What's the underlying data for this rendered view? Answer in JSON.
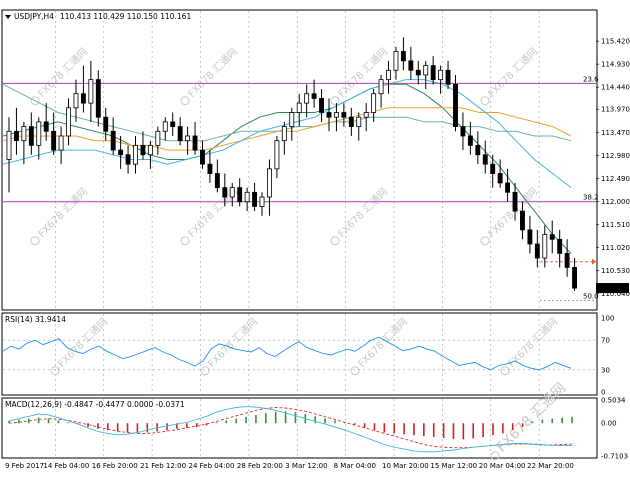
{
  "colors": {
    "price_bar": "#000000",
    "grid": "#a0a0a0",
    "fib_line": "#b040c0",
    "ma_green": "#2e8b57",
    "ma_orange": "#f0a030",
    "ma_teal": "#70b0b0",
    "ma_cyan": "#40b8e0",
    "rsi": "#1e90ff",
    "macd_signal": "#e03030",
    "macd_hist_pos": "#2e9a2e",
    "macd_hist_neg": "#d02020",
    "price_tag_bg": "#000000",
    "dashed_orange": "#e06020",
    "watermark": "#c8c8c8"
  },
  "header": {
    "symbol": "USDJPY,H4",
    "ohlc": "110.413 110.429 110.150 110.161",
    "triangle_icon": "down-triangle-icon"
  },
  "watermark": {
    "text": "FX678 汇通网",
    "logo_icon": "fx678-logo-icon"
  },
  "chart_data": [
    {
      "type": "candlestick",
      "title": "USDJPY,H4",
      "ylim": [
        109.8,
        115.7
      ],
      "y_ticks": [
        "115.420",
        "114.930",
        "114.440",
        "113.970",
        "113.470",
        "112.980",
        "112.490",
        "112.000",
        "111.510",
        "111.020",
        "110.530",
        "110.040"
      ],
      "current_price": "110.161",
      "x_ticks": [
        "9 Feb 2017",
        "14 Feb 04:00",
        "16 Feb 20:00",
        "21 Feb 12:00",
        "24 Feb 04:00",
        "28 Feb 20:00",
        "3 Mar 12:00",
        "8 Mar 04:00",
        "10 Mar 20:00",
        "15 Mar 12:00",
        "20 Mar 04:00",
        "22 Mar 20:00"
      ],
      "fib_levels": [
        {
          "label": "23.6",
          "value": 114.52
        },
        {
          "label": "38.2",
          "value": 112.0
        },
        {
          "label": "50.0",
          "value": 109.9
        }
      ],
      "candles": [
        [
          112.9,
          113.8,
          112.2,
          113.5
        ],
        [
          113.5,
          114.0,
          113.0,
          113.3
        ],
        [
          113.3,
          113.7,
          112.8,
          113.6
        ],
        [
          113.6,
          113.9,
          113.0,
          113.2
        ],
        [
          113.2,
          113.8,
          112.9,
          113.7
        ],
        [
          113.7,
          114.1,
          113.3,
          113.5
        ],
        [
          113.5,
          113.9,
          113.0,
          113.1
        ],
        [
          113.1,
          113.6,
          112.8,
          113.4
        ],
        [
          113.4,
          114.2,
          113.2,
          114.0
        ],
        [
          114.0,
          114.6,
          113.7,
          114.3
        ],
        [
          114.3,
          114.9,
          113.9,
          114.1
        ],
        [
          114.1,
          115.0,
          113.7,
          114.6
        ],
        [
          114.6,
          114.8,
          113.6,
          113.8
        ],
        [
          113.8,
          114.0,
          113.3,
          113.5
        ],
        [
          113.5,
          113.8,
          113.0,
          113.1
        ],
        [
          113.1,
          113.4,
          112.7,
          113.0
        ],
        [
          113.0,
          113.2,
          112.6,
          112.8
        ],
        [
          112.8,
          113.4,
          112.6,
          113.2
        ],
        [
          113.2,
          113.5,
          112.9,
          113.0
        ],
        [
          113.0,
          113.3,
          112.7,
          113.2
        ],
        [
          113.2,
          113.6,
          113.0,
          113.5
        ],
        [
          113.5,
          113.8,
          113.3,
          113.7
        ],
        [
          113.7,
          113.9,
          113.4,
          113.6
        ],
        [
          113.6,
          113.8,
          113.2,
          113.3
        ],
        [
          113.3,
          113.6,
          113.0,
          113.4
        ],
        [
          113.4,
          113.7,
          113.0,
          113.1
        ],
        [
          113.1,
          113.3,
          112.7,
          112.8
        ],
        [
          112.8,
          113.1,
          112.4,
          112.6
        ],
        [
          112.6,
          112.9,
          112.2,
          112.3
        ],
        [
          112.3,
          112.6,
          111.9,
          112.1
        ],
        [
          112.1,
          112.4,
          111.9,
          112.3
        ],
        [
          112.3,
          112.5,
          111.9,
          112.0
        ],
        [
          112.0,
          112.3,
          111.8,
          112.2
        ],
        [
          112.2,
          112.4,
          111.8,
          111.9
        ],
        [
          111.9,
          112.2,
          111.7,
          112.1
        ],
        [
          112.1,
          112.9,
          111.7,
          112.7
        ],
        [
          112.7,
          113.4,
          112.5,
          113.3
        ],
        [
          113.3,
          113.7,
          113.0,
          113.6
        ],
        [
          113.6,
          114.0,
          113.3,
          113.9
        ],
        [
          113.9,
          114.3,
          113.6,
          114.1
        ],
        [
          114.1,
          114.5,
          113.8,
          114.3
        ],
        [
          114.3,
          114.6,
          114.0,
          114.2
        ],
        [
          114.2,
          114.4,
          113.7,
          113.9
        ],
        [
          113.9,
          114.2,
          113.5,
          113.8
        ],
        [
          113.8,
          114.1,
          113.5,
          113.9
        ],
        [
          113.9,
          114.1,
          113.6,
          113.8
        ],
        [
          113.8,
          114.0,
          113.4,
          113.6
        ],
        [
          113.6,
          113.9,
          113.3,
          113.8
        ],
        [
          113.8,
          114.1,
          113.5,
          113.9
        ],
        [
          113.9,
          114.4,
          113.7,
          114.3
        ],
        [
          114.3,
          114.7,
          114.0,
          114.6
        ],
        [
          114.6,
          115.0,
          114.3,
          114.8
        ],
        [
          114.8,
          115.3,
          114.6,
          115.2
        ],
        [
          115.2,
          115.5,
          114.8,
          115.0
        ],
        [
          115.0,
          115.3,
          114.6,
          114.8
        ],
        [
          114.8,
          115.0,
          114.5,
          114.7
        ],
        [
          114.7,
          115.0,
          114.4,
          114.9
        ],
        [
          114.9,
          115.1,
          114.5,
          114.6
        ],
        [
          114.6,
          114.9,
          114.3,
          114.8
        ],
        [
          114.8,
          115.0,
          114.4,
          114.5
        ],
        [
          114.5,
          114.7,
          113.5,
          113.6
        ],
        [
          113.6,
          113.9,
          113.1,
          113.4
        ],
        [
          113.4,
          113.7,
          113.0,
          113.2
        ],
        [
          113.2,
          113.5,
          112.8,
          113.0
        ],
        [
          113.0,
          113.3,
          112.6,
          112.8
        ],
        [
          112.8,
          113.0,
          112.3,
          112.6
        ],
        [
          112.6,
          112.9,
          112.3,
          112.4
        ],
        [
          112.4,
          112.7,
          112.0,
          112.2
        ],
        [
          112.2,
          112.4,
          111.6,
          111.8
        ],
        [
          111.8,
          112.0,
          111.2,
          111.4
        ],
        [
          111.4,
          111.7,
          110.9,
          111.1
        ],
        [
          111.1,
          111.4,
          110.6,
          110.8
        ],
        [
          110.8,
          111.5,
          110.6,
          111.3
        ],
        [
          111.3,
          111.6,
          110.9,
          111.2
        ],
        [
          111.2,
          111.4,
          110.6,
          110.9
        ],
        [
          110.9,
          111.2,
          110.4,
          110.6
        ],
        [
          110.6,
          110.8,
          110.1,
          110.16
        ]
      ],
      "moving_averages": [
        {
          "color_key": "ma_green",
          "values": [
            113.4,
            113.5,
            113.6,
            113.7,
            113.6,
            113.5,
            113.4,
            113.2,
            113.0,
            112.9,
            112.9,
            113.0,
            113.3,
            113.6,
            113.8,
            113.9,
            113.9,
            113.9,
            114.0,
            114.2,
            114.4,
            114.5,
            114.5,
            114.3,
            114.0,
            113.6,
            113.2,
            112.8,
            112.3,
            111.8,
            111.3,
            110.9
          ]
        },
        {
          "color_key": "ma_teal",
          "values": [
            114.5,
            114.3,
            114.1,
            113.9,
            113.8,
            113.7,
            113.6,
            113.5,
            113.4,
            113.3,
            113.3,
            113.3,
            113.4,
            113.5,
            113.5,
            113.5,
            113.6,
            113.6,
            113.7,
            113.7,
            113.8,
            113.8,
            113.8,
            113.7,
            113.7,
            113.6,
            113.6,
            113.5,
            113.5,
            113.4,
            113.4,
            113.3
          ]
        },
        {
          "color_key": "ma_orange",
          "values": [
            113.3,
            113.4,
            113.4,
            113.4,
            113.4,
            113.3,
            113.3,
            113.2,
            113.2,
            113.1,
            113.1,
            113.1,
            113.2,
            113.3,
            113.4,
            113.5,
            113.5,
            113.6,
            113.7,
            113.8,
            113.9,
            114.0,
            114.0,
            114.0,
            114.0,
            114.0,
            113.9,
            113.9,
            113.8,
            113.7,
            113.6,
            113.4
          ]
        },
        {
          "color_key": "ma_cyan",
          "values": [
            112.8,
            112.9,
            113.0,
            113.1,
            113.1,
            113.1,
            113.0,
            112.9,
            112.9,
            112.8,
            112.9,
            113.0,
            113.1,
            113.3,
            113.5,
            113.6,
            113.7,
            113.8,
            114.0,
            114.2,
            114.4,
            114.5,
            114.6,
            114.6,
            114.5,
            114.3,
            114.0,
            113.7,
            113.3,
            112.9,
            112.6,
            112.3
          ]
        }
      ]
    },
    {
      "type": "line",
      "title": "RSI(14) 31.9414",
      "ylim": [
        0,
        100
      ],
      "y_ticks": [
        "100",
        "70",
        "30",
        "0"
      ],
      "levels": [
        70,
        30
      ],
      "values": [
        55,
        62,
        58,
        66,
        70,
        64,
        68,
        72,
        60,
        55,
        52,
        58,
        62,
        55,
        50,
        45,
        48,
        52,
        56,
        60,
        54,
        50,
        44,
        40,
        35,
        42,
        58,
        65,
        62,
        58,
        56,
        54,
        60,
        52,
        48,
        55,
        62,
        68,
        60,
        56,
        52,
        50,
        54,
        58,
        55,
        62,
        70,
        74,
        68,
        62,
        56,
        58,
        62,
        58,
        55,
        48,
        42,
        36,
        38,
        40,
        34,
        30,
        36,
        38,
        42,
        36,
        32,
        30,
        34,
        40,
        36,
        32
      ]
    },
    {
      "type": "bar",
      "title": "MACD(12,26,9) -0.4847 -0.4477 0.0000 -0.0371",
      "ylim": [
        -0.7103,
        0.5034
      ],
      "y_ticks": [
        "0.5034",
        "0.00",
        "-0.7103"
      ],
      "histogram": [
        0.05,
        0.08,
        0.1,
        0.12,
        0.1,
        0.06,
        0.02,
        -0.03,
        -0.08,
        -0.12,
        -0.15,
        -0.18,
        -0.2,
        -0.22,
        -0.2,
        -0.18,
        -0.15,
        -0.12,
        -0.1,
        -0.08,
        -0.05,
        0.02,
        0.06,
        0.1,
        0.14,
        0.18,
        0.22,
        0.25,
        0.26,
        0.24,
        0.2,
        0.15,
        0.1,
        0.06,
        0.02,
        -0.04,
        -0.1,
        -0.15,
        -0.2,
        -0.22,
        -0.24,
        -0.26,
        -0.28,
        -0.3,
        -0.32,
        -0.34,
        -0.35,
        -0.33,
        -0.3,
        -0.26,
        -0.22,
        -0.15,
        -0.08,
        0.04,
        0.08,
        0.1,
        0.12,
        0.14
      ],
      "signal": [
        0.0,
        0.02,
        0.05,
        0.08,
        0.1,
        0.09,
        0.06,
        0.02,
        -0.03,
        -0.08,
        -0.13,
        -0.17,
        -0.2,
        -0.22,
        -0.22,
        -0.2,
        -0.17,
        -0.14,
        -0.1,
        -0.06,
        -0.02,
        0.04,
        0.1,
        0.16,
        0.22,
        0.28,
        0.32,
        0.34,
        0.33,
        0.3,
        0.26,
        0.2,
        0.14,
        0.08,
        0.02,
        -0.04,
        -0.1,
        -0.16,
        -0.22,
        -0.28,
        -0.34,
        -0.4,
        -0.46,
        -0.5,
        -0.52,
        -0.53,
        -0.53,
        -0.52,
        -0.5,
        -0.48,
        -0.46,
        -0.45,
        -0.45,
        -0.46,
        -0.47,
        -0.47,
        -0.46,
        -0.45
      ],
      "macd_line": [
        0.05,
        0.1,
        0.15,
        0.2,
        0.18,
        0.12,
        0.05,
        -0.02,
        -0.1,
        -0.18,
        -0.22,
        -0.25,
        -0.24,
        -0.2,
        -0.15,
        -0.1,
        -0.06,
        -0.02,
        0.02,
        0.08,
        0.15,
        0.24,
        0.3,
        0.34,
        0.36,
        0.35,
        0.32,
        0.28,
        0.22,
        0.16,
        0.1,
        0.04,
        -0.02,
        -0.08,
        -0.15,
        -0.22,
        -0.3,
        -0.38,
        -0.46,
        -0.52,
        -0.56,
        -0.6,
        -0.62,
        -0.62,
        -0.6,
        -0.58,
        -0.55,
        -0.52,
        -0.5,
        -0.48,
        -0.46,
        -0.44,
        -0.44,
        -0.45,
        -0.46,
        -0.48,
        -0.48,
        -0.48
      ]
    }
  ]
}
